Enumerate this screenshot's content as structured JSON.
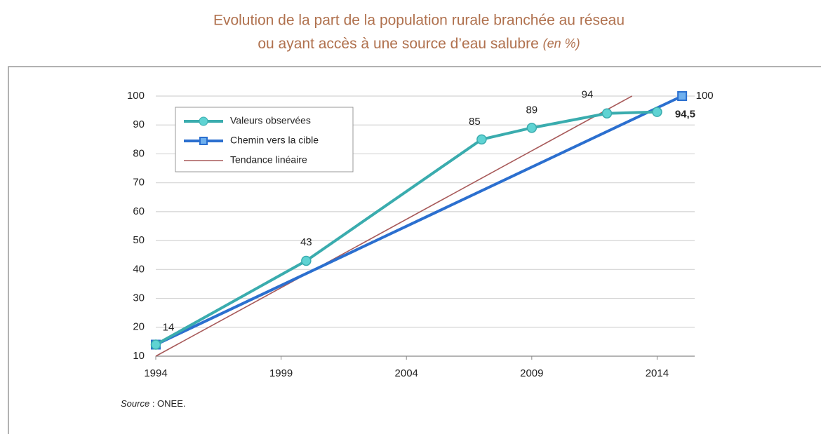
{
  "chart_data": {
    "type": "line",
    "title": "Evolution de la part de la population rurale branchée au réseau",
    "title_line2": "ou ayant accès à une source d’eau salubre",
    "title_unit": "(en %)",
    "source_label": "Source",
    "source": " : ONEE.",
    "xlim": [
      1994,
      2015.5
    ],
    "xticks": [
      1994,
      1999,
      2004,
      2009,
      2014
    ],
    "ylim": [
      10,
      100
    ],
    "yticks": [
      10,
      20,
      30,
      40,
      50,
      60,
      70,
      80,
      90,
      100
    ],
    "grid": true,
    "legend": "top-left",
    "series": [
      {
        "name": "Valeurs observées",
        "color": "#3aacae",
        "marker": "circle",
        "marker_color": "#5fd3d3",
        "x": [
          1994,
          2000,
          2007,
          2009,
          2012,
          2014
        ],
        "values": [
          14,
          43,
          85,
          89,
          94,
          94.5
        ],
        "value_labels": [
          "14",
          "43",
          "85",
          "89",
          "94",
          "94,5"
        ]
      },
      {
        "name": "Chemin vers la cible",
        "color": "#2b6fcf",
        "marker": "square",
        "marker_color": "#6fb0ee",
        "x": [
          1994,
          2015
        ],
        "values": [
          14,
          100
        ],
        "value_labels": [
          null,
          "100"
        ]
      },
      {
        "name": "Tendance linéaire",
        "color": "#a85a5a",
        "marker": "none",
        "x": [
          1994,
          2013
        ],
        "values": [
          10,
          100
        ]
      }
    ]
  }
}
